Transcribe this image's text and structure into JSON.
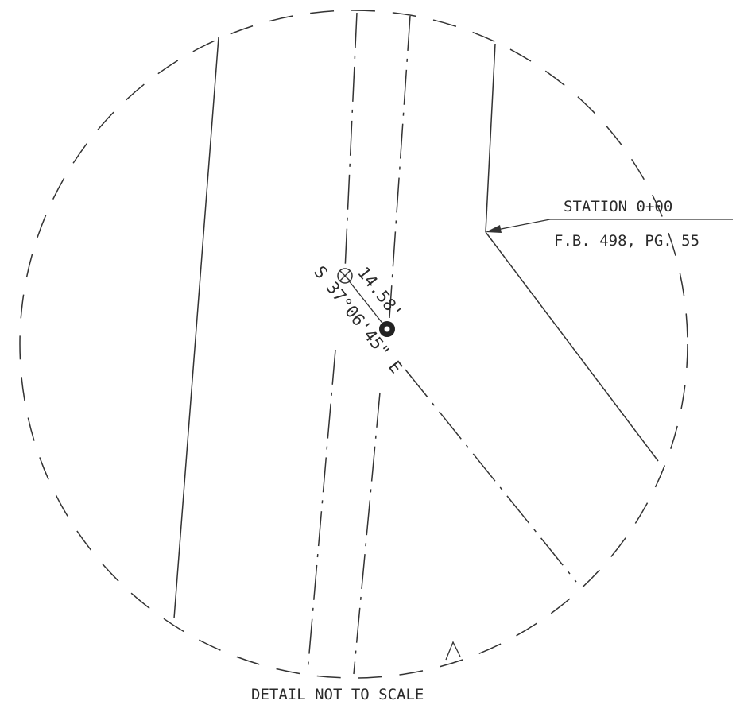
{
  "station_label": "STATION 0+00",
  "field_book_label": "F.B. 498, PG. 55",
  "distance_label": "14.58'",
  "bearing_label": "S 37°06'45\" E",
  "footer_note": "DETAIL NOT TO SCALE",
  "line_color": "#333333",
  "icons": {
    "found_marker": "crossed-circle-icon",
    "set_marker": "filled-circle-icon",
    "leader_arrow": "arrowhead-icon"
  }
}
